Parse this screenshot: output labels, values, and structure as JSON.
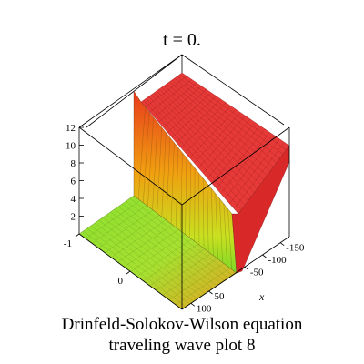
{
  "title": "t = 0.",
  "caption_line1": "Drinfeld-Solokov-Wilson equation",
  "caption_line2": "traveling wave plot 8",
  "chart_data": {
    "type": "surface",
    "title": "t = 0.",
    "xlabel": "x",
    "ylabel": "",
    "zlabel": "",
    "x_ticks": [
      100,
      50,
      -50,
      -100,
      -150
    ],
    "y_ticks": [
      -1,
      0
    ],
    "z_ticks": [
      2,
      4,
      6,
      8,
      10,
      12
    ],
    "z_range": [
      0,
      12
    ],
    "surface_profile": {
      "description_axis": "x",
      "points": [
        {
          "x": 125,
          "z": 0.1
        },
        {
          "x": 60,
          "z": 0.1
        },
        {
          "x": 40,
          "z": 0.2
        },
        {
          "x": 30,
          "z": 1.5
        },
        {
          "x": 25,
          "z": 10.5
        },
        {
          "x": 20,
          "z": 11.0
        },
        {
          "x": 0,
          "z": 10.8
        },
        {
          "x": -50,
          "z": 10.7
        },
        {
          "x": -100,
          "z": 10.7
        },
        {
          "x": -150,
          "z": 10.7
        }
      ]
    },
    "colors": {
      "low": "#80e020",
      "mid": "#f0c000",
      "high": "#e81818"
    }
  }
}
